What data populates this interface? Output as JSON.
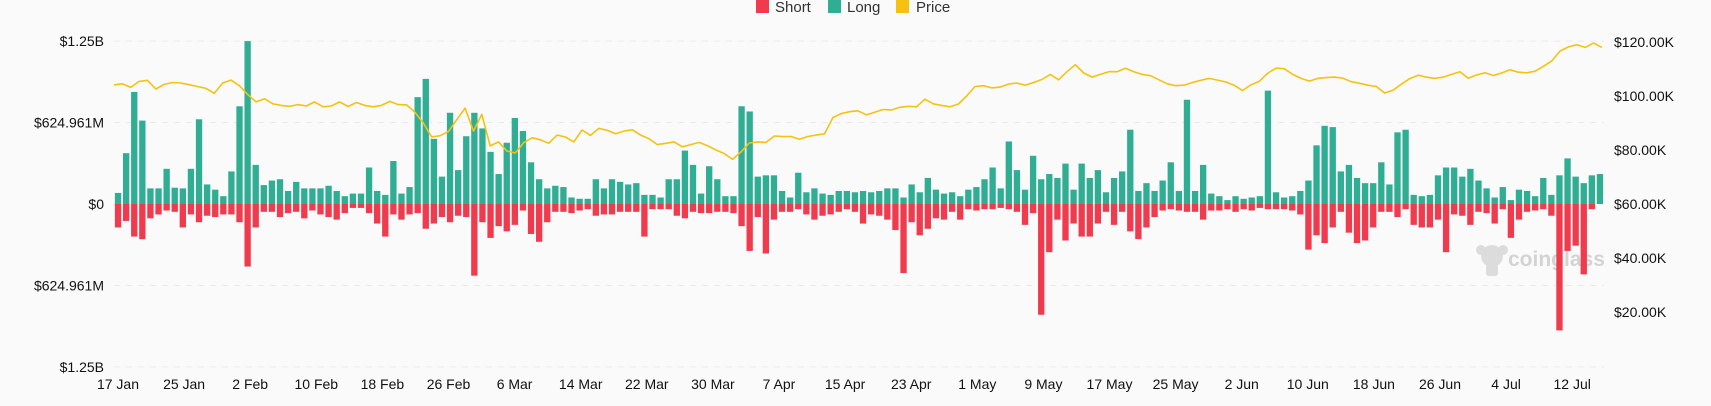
{
  "chart_data": {
    "type": "bar+line",
    "title": "",
    "watermark": "coinglass",
    "legend": [
      {
        "name": "Short",
        "color": "#ef3b4d",
        "key": "short"
      },
      {
        "name": "Long",
        "color": "#2fae93",
        "key": "long"
      },
      {
        "name": "Price",
        "color": "#f5c211",
        "key": "price"
      }
    ],
    "left_axis": {
      "unit": "USD",
      "ticks": [
        {
          "value": 1250000000,
          "label": "$1.25B"
        },
        {
          "value": 624961000,
          "label": "$624.961M"
        },
        {
          "value": 0,
          "label": "$0"
        },
        {
          "value": -624961000,
          "label": "$624.961M"
        },
        {
          "value": -1250000000,
          "label": "$1.25B"
        }
      ],
      "range": [
        -1250000000,
        1250000000
      ]
    },
    "right_axis": {
      "unit": "USD",
      "ticks": [
        {
          "value": 120000,
          "label": "$120.00K"
        },
        {
          "value": 100000,
          "label": "$100.00K"
        },
        {
          "value": 80000,
          "label": "$80.00K"
        },
        {
          "value": 60000,
          "label": "$60.00K"
        },
        {
          "value": 40000,
          "label": "$40.00K"
        },
        {
          "value": 20000,
          "label": "$20.00K"
        }
      ],
      "range": [
        0,
        120000
      ]
    },
    "x_tick_labels": [
      "17 Jan",
      "25 Jan",
      "2 Feb",
      "10 Feb",
      "18 Feb",
      "26 Feb",
      "6 Mar",
      "14 Mar",
      "22 Mar",
      "30 Mar",
      "7 Apr",
      "15 Apr",
      "23 Apr",
      "1 May",
      "9 May",
      "17 May",
      "25 May",
      "2 Jun",
      "10 Jun",
      "18 Jun",
      "26 Jun",
      "4 Jul",
      "12 Jul"
    ],
    "long_values_musd": [
      85,
      390,
      860,
      640,
      120,
      120,
      270,
      125,
      120,
      270,
      650,
      150,
      110,
      60,
      250,
      750,
      1250,
      300,
      145,
      180,
      190,
      100,
      170,
      120,
      120,
      120,
      140,
      100,
      60,
      80,
      80,
      280,
      100,
      70,
      330,
      80,
      130,
      820,
      960,
      500,
      210,
      700,
      260,
      520,
      700,
      580,
      400,
      230,
      470,
      660,
      560,
      320,
      190,
      120,
      140,
      130,
      50,
      40,
      40,
      190,
      120,
      190,
      170,
      150,
      160,
      70,
      70,
      50,
      190,
      190,
      410,
      300,
      80,
      290,
      190,
      60,
      60,
      750,
      710,
      210,
      220,
      220,
      100,
      50,
      240,
      90,
      120,
      80,
      70,
      100,
      100,
      90,
      100,
      90,
      100,
      120,
      120,
      50,
      150,
      90,
      200,
      110,
      80,
      90,
      60,
      110,
      130,
      190,
      280,
      120,
      480,
      260,
      110,
      370,
      190,
      230,
      200,
      310,
      110,
      310,
      200,
      260,
      90,
      200,
      250,
      570,
      100,
      160,
      100,
      180,
      320,
      100,
      800,
      100,
      300,
      80,
      60,
      30,
      60,
      40,
      50,
      60,
      870,
      90,
      50,
      60,
      100,
      180,
      450,
      600,
      590,
      250,
      300,
      200,
      160,
      160,
      320,
      150,
      550,
      570,
      70,
      60,
      70,
      220,
      280,
      280,
      210,
      270,
      180,
      120,
      50,
      130,
      30,
      110,
      100,
      60,
      200,
      70,
      220,
      350,
      210,
      160,
      220,
      230
    ],
    "short_values_musd": [
      -180,
      -130,
      -250,
      -270,
      -110,
      -80,
      -50,
      -60,
      -180,
      -80,
      -140,
      -90,
      -100,
      -80,
      -80,
      -140,
      -480,
      -180,
      -60,
      -60,
      -100,
      -70,
      -60,
      -110,
      -50,
      -80,
      -100,
      -120,
      -70,
      -30,
      -30,
      -70,
      -150,
      -250,
      -80,
      -120,
      -80,
      -70,
      -190,
      -150,
      -100,
      -140,
      -90,
      -100,
      -550,
      -140,
      -260,
      -170,
      -210,
      -160,
      -50,
      -230,
      -290,
      -140,
      -60,
      -60,
      -70,
      -50,
      -40,
      -90,
      -80,
      -80,
      -60,
      -60,
      -60,
      -250,
      -40,
      -40,
      -40,
      -90,
      -110,
      -60,
      -70,
      -70,
      -60,
      -60,
      -70,
      -170,
      -360,
      -100,
      -380,
      -120,
      -60,
      -60,
      -40,
      -80,
      -120,
      -90,
      -80,
      -60,
      -40,
      -60,
      -150,
      -80,
      -90,
      -120,
      -200,
      -530,
      -140,
      -240,
      -190,
      -110,
      -120,
      -60,
      -120,
      -40,
      -50,
      -40,
      -40,
      -30,
      -40,
      -60,
      -160,
      -70,
      -850,
      -370,
      -120,
      -280,
      -150,
      -250,
      -250,
      -150,
      -60,
      -160,
      -60,
      -210,
      -270,
      -180,
      -100,
      -50,
      -40,
      -50,
      -60,
      -60,
      -120,
      -50,
      -50,
      -40,
      -60,
      -40,
      -50,
      -30,
      -40,
      -40,
      -40,
      -50,
      -80,
      -350,
      -240,
      -300,
      -180,
      -60,
      -220,
      -300,
      -280,
      -180,
      -60,
      -60,
      -100,
      -40,
      -160,
      -180,
      -180,
      -120,
      -370,
      -80,
      -90,
      -160,
      -60,
      -70,
      -150,
      -40,
      -260,
      -120,
      -60,
      -50,
      -40,
      -90,
      -970,
      -360,
      -320,
      -540,
      -40
    ],
    "price_values_k": [
      104.1,
      104.5,
      103.2,
      105.4,
      105.8,
      102.6,
      104.3,
      105.0,
      104.8,
      104.2,
      103.5,
      102.8,
      101.0,
      104.8,
      105.9,
      103.8,
      100.5,
      97.8,
      99.0,
      97.1,
      96.5,
      96.2,
      96.8,
      96.3,
      97.8,
      96.0,
      96.3,
      97.8,
      96.1,
      97.6,
      96.5,
      96.0,
      96.5,
      98.0,
      96.8,
      96.7,
      94.0,
      90.0,
      84.8,
      85.3,
      86.8,
      91.2,
      95.5,
      87.0,
      93.2,
      81.5,
      83.0,
      79.6,
      78.9,
      82.7,
      84.5,
      83.8,
      82.5,
      85.5,
      84.8,
      83.0,
      87.4,
      85.4,
      88.0,
      87.3,
      86.0,
      87.0,
      87.5,
      85.5,
      84.2,
      82.0,
      82.5,
      83.0,
      81.2,
      82.0,
      82.8,
      81.6,
      80.0,
      78.7,
      76.5,
      79.3,
      82.6,
      83.0,
      82.8,
      85.2,
      85.0,
      85.0,
      84.0,
      85.0,
      85.5,
      86.0,
      92.0,
      93.5,
      94.2,
      94.5,
      93.0,
      94.0,
      95.0,
      94.8,
      95.8,
      96.2,
      96.0,
      98.8,
      97.1,
      96.5,
      96.0,
      97.0,
      100.0,
      103.5,
      103.8,
      103.0,
      103.3,
      104.4,
      104.8,
      104.0,
      105.0,
      106.1,
      108.0,
      106.0,
      109.0,
      111.6,
      108.5,
      107.0,
      108.0,
      109.0,
      109.0,
      110.3,
      109.0,
      108.0,
      107.5,
      106.0,
      104.5,
      103.8,
      104.0,
      105.0,
      105.8,
      106.5,
      105.9,
      105.2,
      104.0,
      102.0,
      104.1,
      105.4,
      108.4,
      110.3,
      110.1,
      108.0,
      106.5,
      105.5,
      106.5,
      106.8,
      107.0,
      106.6,
      105.3,
      104.7,
      104.0,
      103.5,
      101.1,
      102.1,
      104.4,
      106.4,
      107.7,
      107.0,
      106.5,
      107.0,
      108.0,
      109.0,
      106.6,
      107.8,
      108.6,
      107.6,
      108.5,
      109.7,
      108.8,
      108.6,
      109.2,
      111.0,
      113.0,
      116.7,
      118.2,
      119.0,
      118.0,
      119.6,
      118.0
    ],
    "value_units": {
      "bars": "million USD (positive = Long, negative = Short)",
      "price": "thousand USD"
    }
  }
}
